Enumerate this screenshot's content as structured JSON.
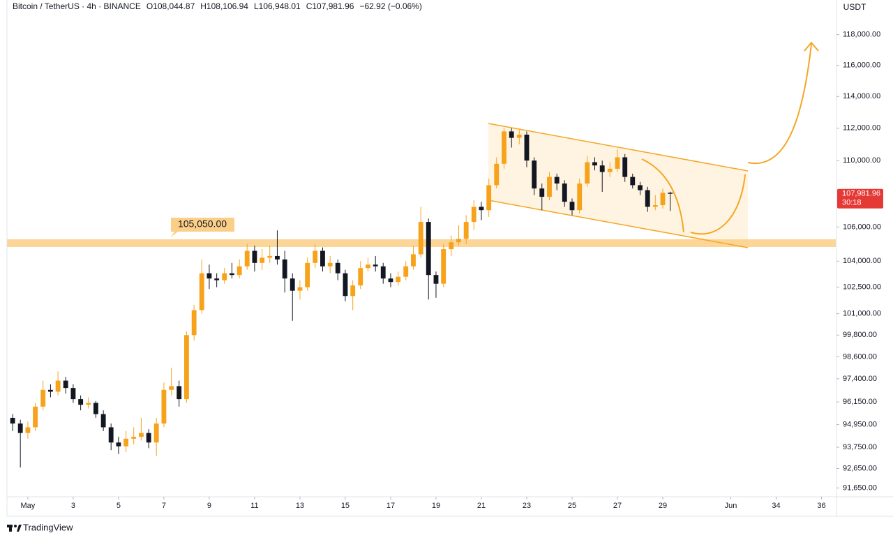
{
  "chart_data": {
    "type": "candlestick",
    "title": "Bitcoin / TetherUS · 4h · BINANCE",
    "header_values": [
      "O108,044.87",
      "H108,106.94",
      "L106,948.01",
      "C107,981.96",
      "−62.92 (−0.06%)"
    ],
    "y_axis_label": "USDT",
    "annotation": "105,050.00",
    "last_price_label": "107,981.96",
    "countdown": "30:18",
    "brand": "TradingView",
    "log_scale": true,
    "up_color": "#f7a21b",
    "down_color": "#131722",
    "x": [
      0.33,
      0.67,
      1,
      1.33,
      1.67,
      2,
      2.33,
      2.67,
      3,
      3.33,
      3.67,
      4,
      4.33,
      4.67,
      5,
      5.33,
      5.67,
      6,
      6.33,
      6.67,
      7,
      7.33,
      7.67,
      8,
      8.33,
      8.67,
      9,
      9.33,
      9.67,
      10,
      10.33,
      10.67,
      11,
      11.33,
      11.67,
      12,
      12.33,
      12.67,
      13,
      13.33,
      13.67,
      14,
      14.33,
      14.67,
      15,
      15.33,
      15.67,
      16,
      16.33,
      16.67,
      17,
      17.33,
      17.67,
      18,
      18.33,
      18.67,
      19,
      19.33,
      19.67,
      20,
      20.33,
      20.67,
      21,
      21.33,
      21.67,
      22,
      22.33,
      22.67,
      23,
      23.33,
      23.67,
      24,
      24.33,
      24.67,
      25,
      25.33,
      25.67,
      26,
      26.33,
      26.67,
      27,
      27.33,
      27.67,
      28,
      28.33,
      28.67,
      29,
      29.33
    ],
    "open": [
      95300,
      95000,
      94500,
      94800,
      95900,
      96800,
      96700,
      97300,
      96900,
      96300,
      96000,
      96100,
      95500,
      94800,
      94000,
      93800,
      94200,
      94300,
      94500,
      94000,
      95000,
      96800,
      97000,
      96300,
      99800,
      101200,
      103300,
      103000,
      102900,
      103300,
      103200,
      103700,
      104600,
      103900,
      104200,
      104300,
      104100,
      103000,
      102300,
      102500,
      103900,
      104600,
      103700,
      103900,
      103300,
      102000,
      102600,
      103600,
      103800,
      103700,
      103000,
      102800,
      103100,
      103700,
      104400,
      106300,
      103200,
      102700,
      104700,
      105100,
      105300,
      106300,
      107200,
      107000,
      108500,
      109800,
      111800,
      111400,
      111600,
      110000,
      108300,
      107800,
      109000,
      108600,
      107500,
      107000,
      108600,
      109900,
      109700,
      109300,
      109500,
      110200,
      109000,
      108500,
      108200,
      107200,
      107300,
      108044.87
    ],
    "high": [
      95500,
      95200,
      95100,
      96100,
      97300,
      97100,
      97800,
      97500,
      97100,
      96500,
      96400,
      96200,
      95700,
      95000,
      94300,
      94600,
      94800,
      95300,
      94700,
      95300,
      97200,
      98000,
      97300,
      100000,
      101500,
      104100,
      103800,
      103300,
      103600,
      103900,
      104100,
      105000,
      104900,
      104700,
      104900,
      105800,
      104600,
      103300,
      102900,
      104200,
      105000,
      104800,
      104300,
      104100,
      103500,
      102900,
      104000,
      104200,
      104300,
      103900,
      103300,
      103400,
      104000,
      104900,
      107200,
      106500,
      103400,
      105000,
      105500,
      106100,
      106700,
      107600,
      107500,
      108900,
      110200,
      112000,
      112000,
      111900,
      111800,
      110200,
      108600,
      109300,
      109200,
      108800,
      107700,
      108900,
      110300,
      110200,
      110000,
      109900,
      110700,
      110400,
      109200,
      108700,
      108400,
      107900,
      108300,
      108106.94
    ],
    "low": [
      94600,
      92700,
      94200,
      94600,
      95700,
      96400,
      96500,
      96600,
      96100,
      95700,
      95800,
      95300,
      94600,
      93600,
      93400,
      93500,
      93900,
      94100,
      93700,
      93300,
      94800,
      96500,
      95900,
      96100,
      99500,
      101000,
      102400,
      102500,
      102700,
      103000,
      103000,
      103500,
      103400,
      103500,
      103900,
      103800,
      102200,
      100600,
      101800,
      102300,
      103600,
      103400,
      103300,
      102900,
      101700,
      101200,
      102400,
      103400,
      103400,
      102700,
      102500,
      102600,
      102900,
      103500,
      104200,
      101800,
      101900,
      102500,
      104300,
      104900,
      105000,
      105800,
      106400,
      106600,
      108300,
      109500,
      110800,
      111000,
      109600,
      107900,
      107000,
      107600,
      108200,
      107200,
      106700,
      106800,
      108400,
      109400,
      108100,
      109000,
      109300,
      108700,
      108300,
      107900,
      106900,
      107000,
      107100,
      106948.01
    ],
    "close": [
      95000,
      94500,
      94800,
      95900,
      96800,
      96700,
      97300,
      96900,
      96300,
      96000,
      96100,
      95500,
      94800,
      94000,
      93800,
      94200,
      94300,
      94500,
      94000,
      95000,
      96800,
      97000,
      96300,
      99800,
      101200,
      103300,
      103000,
      102900,
      103300,
      103200,
      103700,
      104600,
      103900,
      104200,
      104300,
      104100,
      103000,
      102300,
      102500,
      103900,
      104600,
      103700,
      103900,
      103300,
      102000,
      102600,
      103600,
      103800,
      103700,
      103000,
      102800,
      103100,
      103700,
      104400,
      106300,
      103200,
      102700,
      104700,
      105100,
      105300,
      106300,
      107200,
      107000,
      108500,
      109800,
      111800,
      111400,
      111600,
      110000,
      108300,
      107800,
      109000,
      108600,
      107500,
      107000,
      108600,
      109900,
      109700,
      109300,
      109500,
      110200,
      109000,
      108500,
      108200,
      107200,
      107300,
      108040,
      107981.96
    ],
    "xlim": [
      0.08,
      36.63
    ],
    "xticks": [
      {
        "value": 1,
        "label": "May"
      },
      3,
      5,
      7,
      9,
      11,
      13,
      15,
      17,
      19,
      21,
      23,
      25,
      27,
      29,
      {
        "value": 32,
        "label": "Jun"
      },
      34,
      36
    ],
    "ylim": [
      91200,
      120300
    ],
    "yticks": [
      {
        "value": 118000,
        "label": "118,000.00"
      },
      {
        "value": 116000,
        "label": "116,000.00"
      },
      {
        "value": 114000,
        "label": "114,000.00"
      },
      {
        "value": 112000,
        "label": "112,000.00"
      },
      {
        "value": 110000,
        "label": "110,000.00"
      },
      {
        "value": 106000,
        "label": "106,000.00"
      },
      {
        "value": 104000,
        "label": "104,000.00"
      },
      {
        "value": 102500,
        "label": "102,500.00"
      },
      {
        "value": 101000,
        "label": "101,000.00"
      },
      {
        "value": 99800,
        "label": "99,800.00"
      },
      {
        "value": 98600,
        "label": "98,600.00"
      },
      {
        "value": 97400,
        "label": "97,400.00"
      },
      {
        "value": 96150,
        "label": "96,150.00"
      },
      {
        "value": 94950,
        "label": "94,950.00"
      },
      {
        "value": 93750,
        "label": "93,750.00"
      },
      {
        "value": 92650,
        "label": "92,650.00"
      },
      {
        "value": 91650,
        "label": "91,650.00"
      }
    ]
  }
}
